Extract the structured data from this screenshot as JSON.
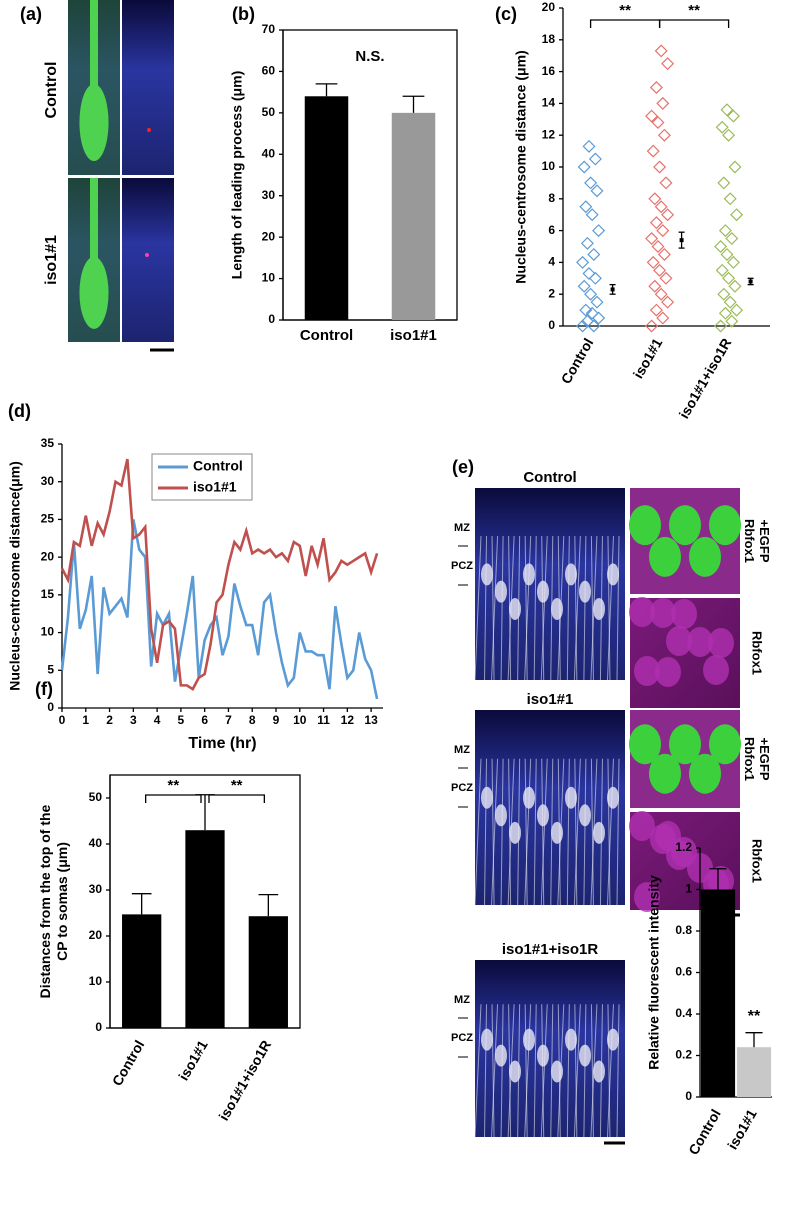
{
  "panel_labels": [
    "(a)",
    "(b)",
    "(c)",
    "(d)",
    "(e)",
    "(f)"
  ],
  "panel_a": {
    "rows": [
      "Control",
      "iso1#1"
    ]
  },
  "panel_e": {
    "images": [
      {
        "title": "Control",
        "zones": [
          "MZ",
          "PCZ"
        ],
        "insets": [
          [
            "Rbfox1",
            "+EGFP"
          ],
          [
            "Rbfox1"
          ]
        ]
      },
      {
        "title": "iso1#1",
        "zones": [
          "MZ",
          "PCZ"
        ],
        "insets": [
          [
            "Rbfox1",
            "+EGFP"
          ],
          [
            "Rbfox1"
          ]
        ]
      },
      {
        "title": "iso1#1+iso1R",
        "zones": [
          "MZ",
          "PCZ"
        ]
      }
    ]
  },
  "chart_data": [
    {
      "type": "bar",
      "ylabel": [
        "Length of leading process (μm)"
      ],
      "categories": [
        "Control",
        "iso1#1"
      ],
      "values": [
        54,
        50
      ],
      "errors": [
        3,
        4
      ],
      "colors": [
        "#000000",
        "#999999"
      ],
      "ylim": [
        0,
        70
      ],
      "yticks": [
        0,
        10,
        20,
        30,
        40,
        50,
        60,
        70
      ],
      "annotations": [
        "N.S."
      ]
    },
    {
      "type": "strip",
      "ylabel": [
        "Nucleus-centrosome distance (μm)"
      ],
      "categories": [
        "Control",
        "iso1#1",
        "iso1#1+iso1R"
      ],
      "colors": [
        "#5b9bd5",
        "#e8716b",
        "#9bbb59"
      ],
      "groups": [
        [
          0,
          0,
          0.3,
          0.5,
          0.8,
          1,
          1.5,
          2,
          2.5,
          3,
          3.3,
          4,
          4.5,
          5.2,
          6,
          7,
          7.5,
          8.5,
          9,
          10,
          10.5,
          11.3
        ],
        [
          0,
          0.5,
          1,
          1.5,
          2,
          2.5,
          3,
          3.5,
          4,
          4.5,
          5,
          5.5,
          6,
          6.5,
          7,
          7.5,
          8,
          9,
          10,
          11,
          12,
          12.8,
          13.2,
          14,
          15,
          16.5,
          17.3
        ],
        [
          0,
          0.3,
          0.8,
          1,
          1.5,
          2,
          2.5,
          3,
          3.5,
          4,
          4.5,
          5,
          5.5,
          6,
          7,
          8,
          9,
          10,
          12,
          12.5,
          13.2,
          13.6
        ]
      ],
      "means": [
        2.3,
        5.4,
        2.8
      ],
      "errors": [
        0.3,
        0.5,
        0.2
      ],
      "ylim": [
        0,
        20
      ],
      "yticks": [
        0,
        2,
        4,
        6,
        8,
        10,
        12,
        14,
        16,
        18,
        20
      ],
      "annotations": [
        "**",
        "**"
      ]
    },
    {
      "type": "line",
      "xlabel": "Time (hr)",
      "ylabel": [
        "Nucleus-centrosome distance(μm)"
      ],
      "x": [
        0,
        0.25,
        0.5,
        0.75,
        1,
        1.25,
        1.5,
        1.75,
        2,
        2.25,
        2.5,
        2.75,
        3,
        3.25,
        3.5,
        3.75,
        4,
        4.25,
        4.5,
        4.75,
        5,
        5.25,
        5.5,
        5.75,
        6,
        6.25,
        6.5,
        6.75,
        7,
        7.25,
        7.5,
        7.75,
        8,
        8.25,
        8.5,
        8.75,
        9,
        9.25,
        9.5,
        9.75,
        10,
        10.25,
        10.5,
        10.75,
        11,
        11.25,
        11.5,
        11.75,
        12,
        12.25,
        12.5,
        12.75,
        13,
        13.25
      ],
      "series": [
        {
          "name": "Control",
          "color": "#5b9bd5",
          "values": [
            5,
            12,
            22,
            10.5,
            13,
            17.5,
            4.5,
            16,
            12.5,
            13.5,
            14.5,
            12,
            25,
            21,
            20,
            5.5,
            12.5,
            11,
            12.5,
            3.5,
            8,
            12.5,
            17.5,
            4,
            9,
            11,
            12,
            7,
            9.5,
            16.5,
            13.5,
            11,
            11,
            7,
            14,
            15,
            10,
            6,
            3,
            4,
            10,
            7.5,
            7.5,
            7,
            7,
            2.5,
            13.5,
            8.5,
            4,
            5,
            10,
            6.5,
            5,
            1.2
          ]
        },
        {
          "name": "iso1#1",
          "color": "#c0504d",
          "values": [
            18.5,
            17,
            22,
            21.5,
            25.5,
            21.5,
            24.5,
            23,
            26,
            30,
            29.5,
            33,
            22.5,
            23,
            24,
            10.5,
            6,
            11,
            11.5,
            10.5,
            3,
            3,
            2.5,
            4,
            4.5,
            8.5,
            14,
            15,
            19,
            22,
            21,
            23.5,
            20.5,
            21,
            20.5,
            21,
            20,
            20.5,
            19.5,
            22,
            21.5,
            17.5,
            21.5,
            19,
            22.5,
            17,
            18,
            19.5,
            19,
            19.5,
            20,
            20.5,
            18,
            20.5
          ]
        }
      ],
      "xlim": [
        0,
        13.5
      ],
      "xticks": [
        0,
        1,
        2,
        3,
        4,
        5,
        6,
        7,
        8,
        9,
        10,
        11,
        12,
        13
      ],
      "ylim": [
        0,
        35
      ],
      "yticks": [
        0,
        5,
        10,
        15,
        20,
        25,
        30,
        35
      ],
      "legend": "top-left"
    },
    {
      "type": "bar",
      "ylabel": [
        "Distances from the top of the",
        "CP to somas (μm)"
      ],
      "categories": [
        "Control",
        "iso1#1",
        "iso1#1+iso1R"
      ],
      "values": [
        24.7,
        43,
        24.3
      ],
      "errors": [
        4.5,
        7.7,
        4.7
      ],
      "colors": [
        "#000000",
        "#000000",
        "#000000"
      ],
      "ylim": [
        0,
        55
      ],
      "yticks": [
        0,
        10,
        20,
        30,
        40,
        50
      ],
      "annotations": [
        "**",
        "**"
      ]
    },
    {
      "type": "bar",
      "ylabel": [
        "Relative fluorescent intensity"
      ],
      "categories": [
        "Control",
        "iso1#1"
      ],
      "values": [
        1,
        0.24
      ],
      "errors": [
        0.1,
        0.07
      ],
      "colors": [
        "#000000",
        "#c8c8c8"
      ],
      "ylim": [
        0,
        1.2
      ],
      "yticks": [
        0,
        0.2,
        0.4,
        0.6,
        0.8,
        1,
        1.2
      ],
      "annotations": [
        "**"
      ]
    }
  ]
}
